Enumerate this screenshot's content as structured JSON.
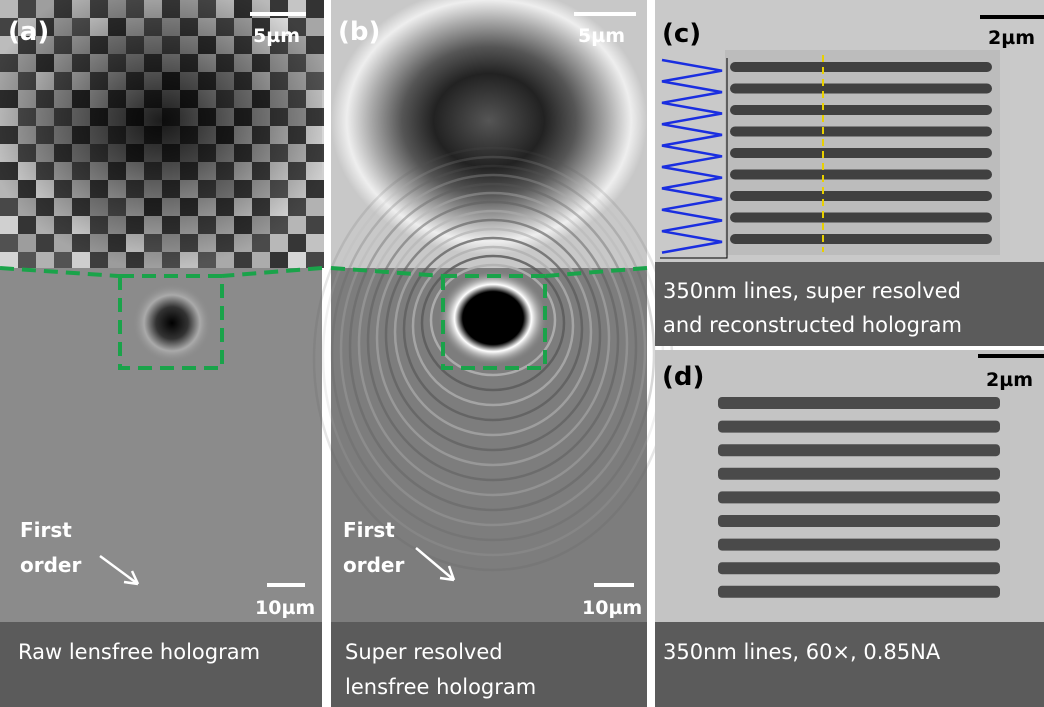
{
  "panels": [
    {
      "label": "(a)",
      "scale_top": "5µm",
      "scale_bottom": "10µm",
      "annotation": [
        "First",
        "order"
      ],
      "caption": [
        "Raw lensfree hologram"
      ]
    },
    {
      "label": "(b)",
      "scale_top": "5µm",
      "scale_bottom": "10µm",
      "annotation": [
        "First",
        "order"
      ],
      "caption": [
        "Super resolved",
        "lensfree hologram"
      ]
    },
    {
      "label": "(c)",
      "scale_top": "2µm",
      "caption": [
        "350nm lines, super resolved",
        "and reconstructed hologram"
      ]
    },
    {
      "label": "(d)",
      "scale_top": "2µm",
      "caption": [
        "350nm lines, 60×, 0.85NA"
      ]
    }
  ]
}
